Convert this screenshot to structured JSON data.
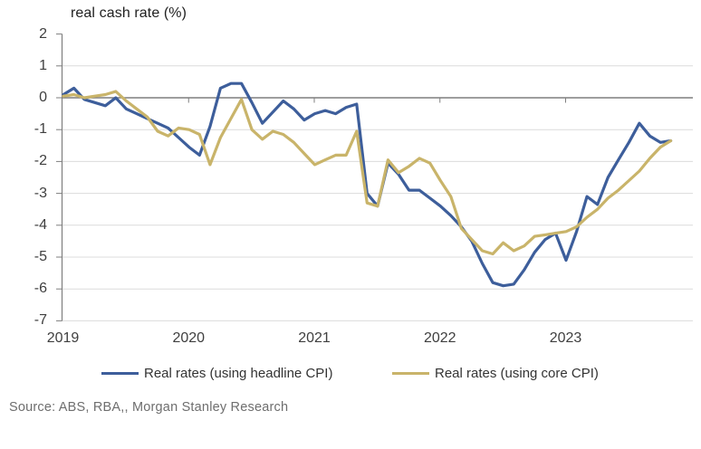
{
  "source_note": "Source: ABS, RBA,, Morgan Stanley Research",
  "chart_data": {
    "type": "line",
    "title": "real cash rate (%)",
    "xlabel": "",
    "ylabel": "real cash rate (%)",
    "ylim": [
      -7,
      2
    ],
    "grid": true,
    "zero_axis_emphasized": true,
    "legend_position": "bottom",
    "x_range": {
      "start": "2019-01",
      "end": "2023-11",
      "frequency": "monthly"
    },
    "x_tick_labels": [
      "2019",
      "2020",
      "2021",
      "2022",
      "2023"
    ],
    "y_ticks": [
      2,
      1,
      0,
      -1,
      -2,
      -3,
      -4,
      -5,
      -6,
      -7
    ],
    "series": [
      {
        "name": "Real rates (using headline CPI)",
        "color": "#3d5e9b",
        "values": [
          0.1,
          0.3,
          -0.05,
          -0.15,
          -0.25,
          0.0,
          -0.35,
          -0.5,
          -0.65,
          -0.8,
          -0.95,
          -1.25,
          -1.55,
          -1.8,
          -0.9,
          0.3,
          0.45,
          0.45,
          -0.15,
          -0.8,
          -0.45,
          -0.1,
          -0.35,
          -0.7,
          -0.5,
          -0.4,
          -0.5,
          -0.3,
          -0.2,
          -3.0,
          -3.4,
          -2.05,
          -2.4,
          -2.9,
          -2.9,
          -3.15,
          -3.4,
          -3.7,
          -4.05,
          -4.5,
          -5.2,
          -5.8,
          -5.9,
          -5.85,
          -5.4,
          -4.85,
          -4.45,
          -4.25,
          -5.1,
          -4.2,
          -3.1,
          -3.35,
          -2.5,
          -1.95,
          -1.4,
          -0.8,
          -1.2,
          -1.4,
          -1.35
        ]
      },
      {
        "name": "Real rates (using core CPI)",
        "color": "#c9b46a",
        "values": [
          0.05,
          0.1,
          0.0,
          0.05,
          0.1,
          0.2,
          -0.1,
          -0.35,
          -0.6,
          -1.05,
          -1.2,
          -0.95,
          -1.0,
          -1.15,
          -2.1,
          -1.25,
          -0.65,
          -0.05,
          -1.0,
          -1.3,
          -1.05,
          -1.15,
          -1.4,
          -1.75,
          -2.1,
          -1.95,
          -1.8,
          -1.8,
          -1.05,
          -3.3,
          -3.4,
          -1.95,
          -2.35,
          -2.15,
          -1.9,
          -2.05,
          -2.6,
          -3.1,
          -4.1,
          -4.45,
          -4.8,
          -4.9,
          -4.55,
          -4.8,
          -4.65,
          -4.35,
          -4.3,
          -4.25,
          -4.2,
          -4.05,
          -3.75,
          -3.5,
          -3.15,
          -2.9,
          -2.6,
          -2.3,
          -1.9,
          -1.55,
          -1.35
        ]
      }
    ]
  }
}
